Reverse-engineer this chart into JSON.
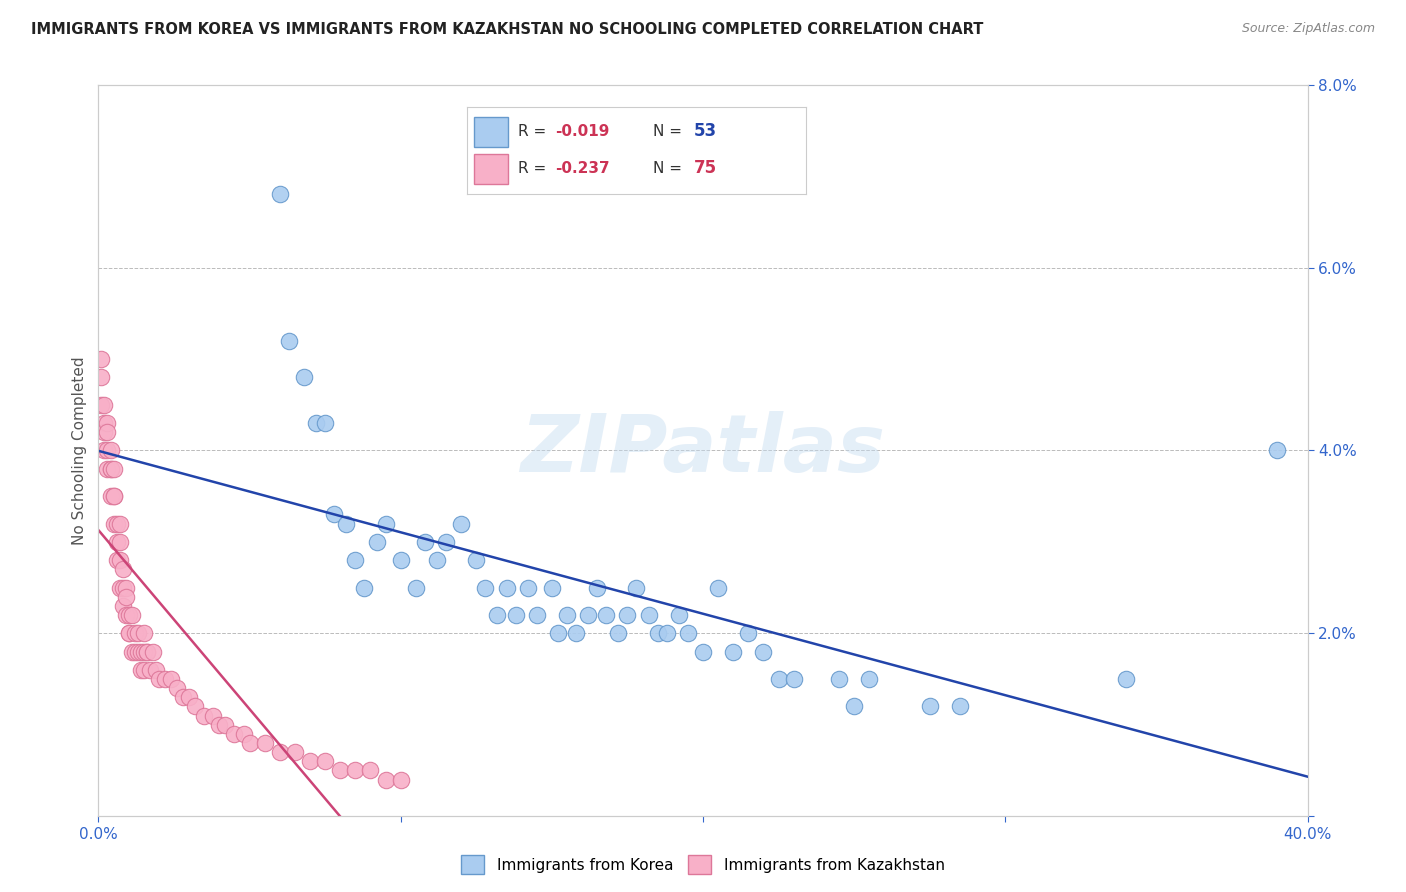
{
  "title": "IMMIGRANTS FROM KOREA VS IMMIGRANTS FROM KAZAKHSTAN NO SCHOOLING COMPLETED CORRELATION CHART",
  "source": "Source: ZipAtlas.com",
  "ylabel_label": "No Schooling Completed",
  "xlim": [
    0.0,
    0.4
  ],
  "ylim": [
    0.0,
    0.08
  ],
  "xticks": [
    0.0,
    0.1,
    0.2,
    0.3,
    0.4
  ],
  "xticklabels_show": [
    "0.0%",
    "",
    "",
    "",
    "40.0%"
  ],
  "yticks": [
    0.0,
    0.02,
    0.04,
    0.06,
    0.08
  ],
  "yticklabels": [
    "",
    "2.0%",
    "4.0%",
    "6.0%",
    "8.0%"
  ],
  "korea_color": "#aaccf0",
  "korea_edge_color": "#6699cc",
  "kazakhstan_color": "#f8b0c8",
  "kazakhstan_edge_color": "#dd7799",
  "korea_R": "-0.019",
  "korea_N": "53",
  "kazakhstan_R": "-0.237",
  "kazakhstan_N": "75",
  "trend_korea_color": "#2244aa",
  "trend_kazakhstan_color": "#cc4477",
  "background_color": "#ffffff",
  "grid_color": "#bbbbbb",
  "watermark": "ZIPatlas",
  "legend_label_korea": "Immigrants from Korea",
  "legend_label_kazakhstan": "Immigrants from Kazakhstan",
  "korea_x": [
    0.06,
    0.063,
    0.068,
    0.072,
    0.075,
    0.078,
    0.082,
    0.085,
    0.088,
    0.092,
    0.095,
    0.1,
    0.105,
    0.108,
    0.112,
    0.115,
    0.12,
    0.125,
    0.128,
    0.132,
    0.135,
    0.138,
    0.142,
    0.145,
    0.15,
    0.152,
    0.155,
    0.158,
    0.162,
    0.165,
    0.168,
    0.172,
    0.175,
    0.178,
    0.182,
    0.185,
    0.188,
    0.192,
    0.195,
    0.2,
    0.205,
    0.21,
    0.215,
    0.22,
    0.225,
    0.23,
    0.245,
    0.25,
    0.255,
    0.275,
    0.285,
    0.34,
    0.39
  ],
  "korea_y": [
    0.068,
    0.052,
    0.048,
    0.043,
    0.043,
    0.033,
    0.032,
    0.028,
    0.025,
    0.03,
    0.032,
    0.028,
    0.025,
    0.03,
    0.028,
    0.03,
    0.032,
    0.028,
    0.025,
    0.022,
    0.025,
    0.022,
    0.025,
    0.022,
    0.025,
    0.02,
    0.022,
    0.02,
    0.022,
    0.025,
    0.022,
    0.02,
    0.022,
    0.025,
    0.022,
    0.02,
    0.02,
    0.022,
    0.02,
    0.018,
    0.025,
    0.018,
    0.02,
    0.018,
    0.015,
    0.015,
    0.015,
    0.012,
    0.015,
    0.012,
    0.012,
    0.015,
    0.04
  ],
  "kazakhstan_x": [
    0.001,
    0.001,
    0.001,
    0.002,
    0.002,
    0.002,
    0.002,
    0.003,
    0.003,
    0.003,
    0.003,
    0.004,
    0.004,
    0.004,
    0.004,
    0.005,
    0.005,
    0.005,
    0.005,
    0.006,
    0.006,
    0.006,
    0.007,
    0.007,
    0.007,
    0.007,
    0.008,
    0.008,
    0.008,
    0.009,
    0.009,
    0.009,
    0.01,
    0.01,
    0.01,
    0.011,
    0.011,
    0.012,
    0.012,
    0.013,
    0.013,
    0.014,
    0.014,
    0.015,
    0.015,
    0.015,
    0.016,
    0.016,
    0.017,
    0.018,
    0.019,
    0.02,
    0.022,
    0.024,
    0.026,
    0.028,
    0.03,
    0.032,
    0.035,
    0.038,
    0.04,
    0.042,
    0.045,
    0.048,
    0.05,
    0.055,
    0.06,
    0.065,
    0.07,
    0.075,
    0.08,
    0.085,
    0.09,
    0.095,
    0.1
  ],
  "kazakhstan_y": [
    0.05,
    0.045,
    0.048,
    0.045,
    0.043,
    0.04,
    0.042,
    0.043,
    0.04,
    0.038,
    0.042,
    0.038,
    0.04,
    0.035,
    0.038,
    0.035,
    0.038,
    0.032,
    0.035,
    0.03,
    0.032,
    0.028,
    0.03,
    0.032,
    0.028,
    0.025,
    0.025,
    0.027,
    0.023,
    0.025,
    0.022,
    0.024,
    0.02,
    0.022,
    0.02,
    0.022,
    0.018,
    0.02,
    0.018,
    0.02,
    0.018,
    0.018,
    0.016,
    0.018,
    0.016,
    0.02,
    0.018,
    0.018,
    0.016,
    0.018,
    0.016,
    0.015,
    0.015,
    0.015,
    0.014,
    0.013,
    0.013,
    0.012,
    0.011,
    0.011,
    0.01,
    0.01,
    0.009,
    0.009,
    0.008,
    0.008,
    0.007,
    0.007,
    0.006,
    0.006,
    0.005,
    0.005,
    0.005,
    0.004,
    0.004
  ]
}
